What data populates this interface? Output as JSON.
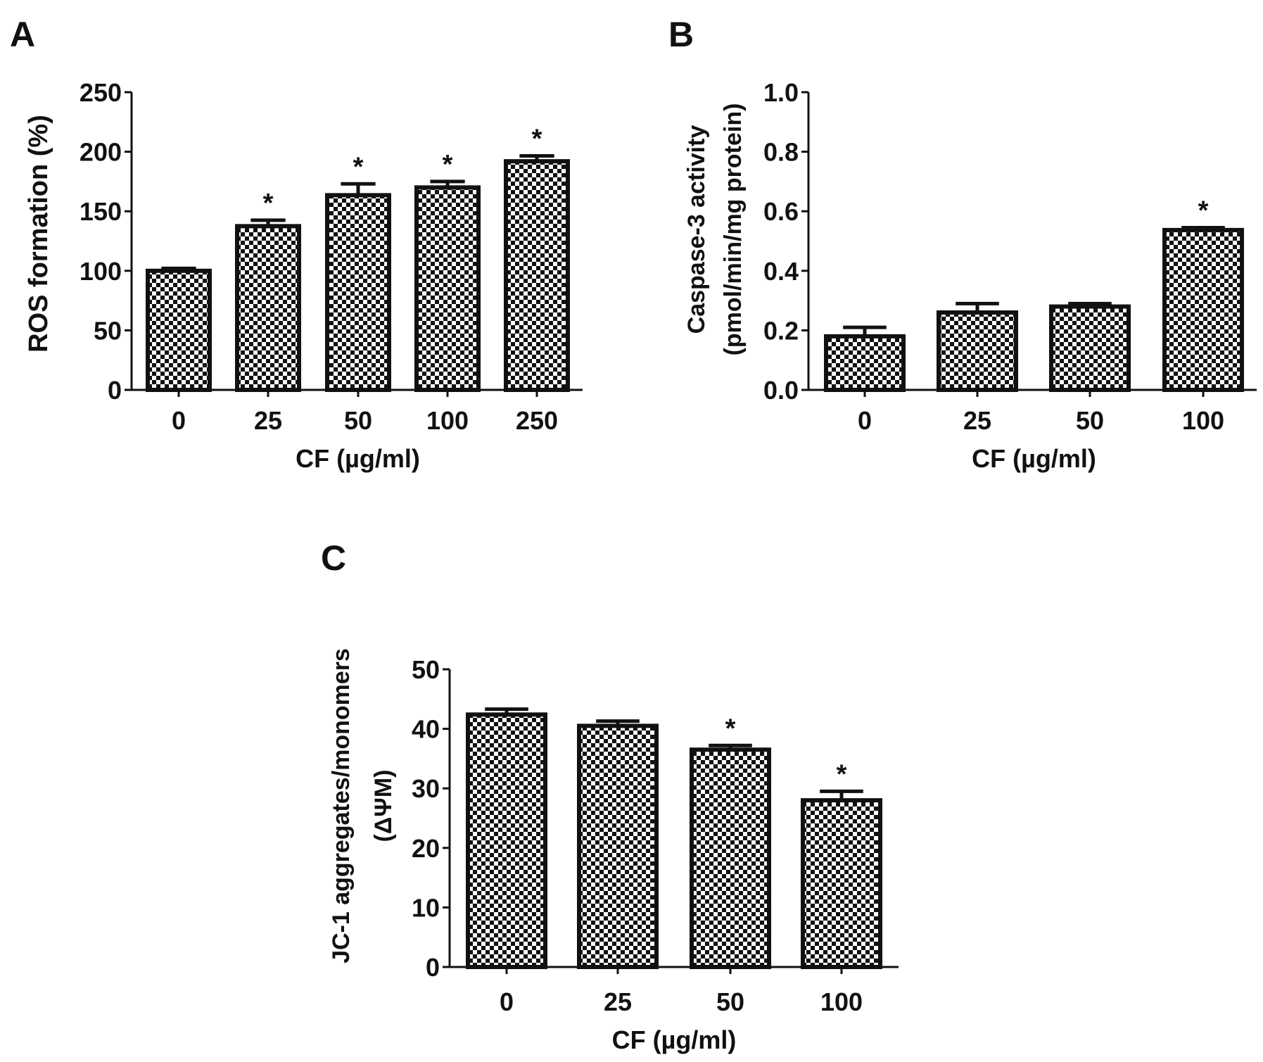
{
  "chart_data": [
    {
      "type": "bar",
      "panel_label": "A",
      "title": "",
      "categories": [
        "0",
        "25",
        "50",
        "100",
        "250"
      ],
      "values": [
        100,
        137.5,
        163.5,
        170,
        192
      ],
      "errors": [
        2,
        5,
        9.5,
        5,
        4.5
      ],
      "significance": [
        "",
        "*",
        "*",
        "*",
        "*"
      ],
      "xlabel": "CF (µg/ml)",
      "ylabel": [
        "ROS formation (%)"
      ],
      "ylim": [
        0,
        250
      ],
      "yticks": [
        "0",
        "50",
        "100",
        "150",
        "200",
        "250"
      ],
      "ytick_values": [
        0,
        50,
        100,
        150,
        200,
        250
      ],
      "grid": false
    },
    {
      "type": "bar",
      "panel_label": "B",
      "title": "",
      "categories": [
        "0",
        "25",
        "50",
        "100"
      ],
      "values": [
        0.18,
        0.26,
        0.28,
        0.537
      ],
      "errors": [
        0.03,
        0.03,
        0.01,
        0.008
      ],
      "significance": [
        "",
        "",
        "",
        "*"
      ],
      "xlabel": "CF (µg/ml)",
      "ylabel": [
        "Caspase-3 activity",
        "(pmol/min/mg protein)"
      ],
      "ylim": [
        0,
        1.0
      ],
      "yticks": [
        "0.0",
        "0.2",
        "0.4",
        "0.6",
        "0.8",
        "1.0"
      ],
      "ytick_values": [
        0,
        0.2,
        0.4,
        0.6,
        0.8,
        1.0
      ],
      "grid": false
    },
    {
      "type": "bar",
      "panel_label": "C",
      "title": "",
      "categories": [
        "0",
        "25",
        "50",
        "100"
      ],
      "values": [
        42.4,
        40.5,
        36.5,
        28.0
      ],
      "errors": [
        0.9,
        0.8,
        0.7,
        1.5
      ],
      "significance": [
        "",
        "",
        "*",
        "*"
      ],
      "xlabel": "CF (µg/ml)",
      "ylabel": [
        "JC-1 aggregates/monomers",
        "(ΔΨM)"
      ],
      "ylim": [
        0,
        50
      ],
      "yticks": [
        "0",
        "10",
        "20",
        "30",
        "40",
        "50"
      ],
      "ytick_values": [
        0,
        10,
        20,
        30,
        40,
        50
      ],
      "grid": false
    }
  ]
}
